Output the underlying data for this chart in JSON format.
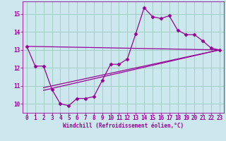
{
  "xlabel": "Windchill (Refroidissement éolien,°C)",
  "bg_color": "#cce8ee",
  "line_color": "#990099",
  "xlim": [
    -0.5,
    23.5
  ],
  "ylim": [
    9.5,
    15.7
  ],
  "yticks": [
    10,
    11,
    12,
    13,
    14,
    15
  ],
  "xticks": [
    0,
    1,
    2,
    3,
    4,
    5,
    6,
    7,
    8,
    9,
    10,
    11,
    12,
    13,
    14,
    15,
    16,
    17,
    18,
    19,
    20,
    21,
    22,
    23
  ],
  "curve_x": [
    0,
    1,
    2,
    3,
    4,
    5,
    6,
    7,
    8,
    9,
    10,
    11,
    12,
    13,
    14,
    15,
    16,
    17,
    18,
    19,
    20,
    21,
    22,
    23
  ],
  "curve_y": [
    13.2,
    12.1,
    12.1,
    10.8,
    10.0,
    9.9,
    10.3,
    10.3,
    10.4,
    11.3,
    12.2,
    12.2,
    12.5,
    13.9,
    15.35,
    14.85,
    14.75,
    14.9,
    14.1,
    13.85,
    13.85,
    13.5,
    13.1,
    13.0
  ],
  "line1_x": [
    0,
    23
  ],
  "line1_y": [
    13.2,
    13.0
  ],
  "line2_x": [
    2,
    23
  ],
  "line2_y": [
    10.75,
    13.0
  ],
  "line3_x": [
    2,
    23
  ],
  "line3_y": [
    10.9,
    13.0
  ],
  "grid_color": "#99ccbb",
  "marker": "D",
  "marker_size": 2.5,
  "linewidth": 0.9,
  "tick_fontsize": 5.5,
  "xlabel_fontsize": 5.5
}
